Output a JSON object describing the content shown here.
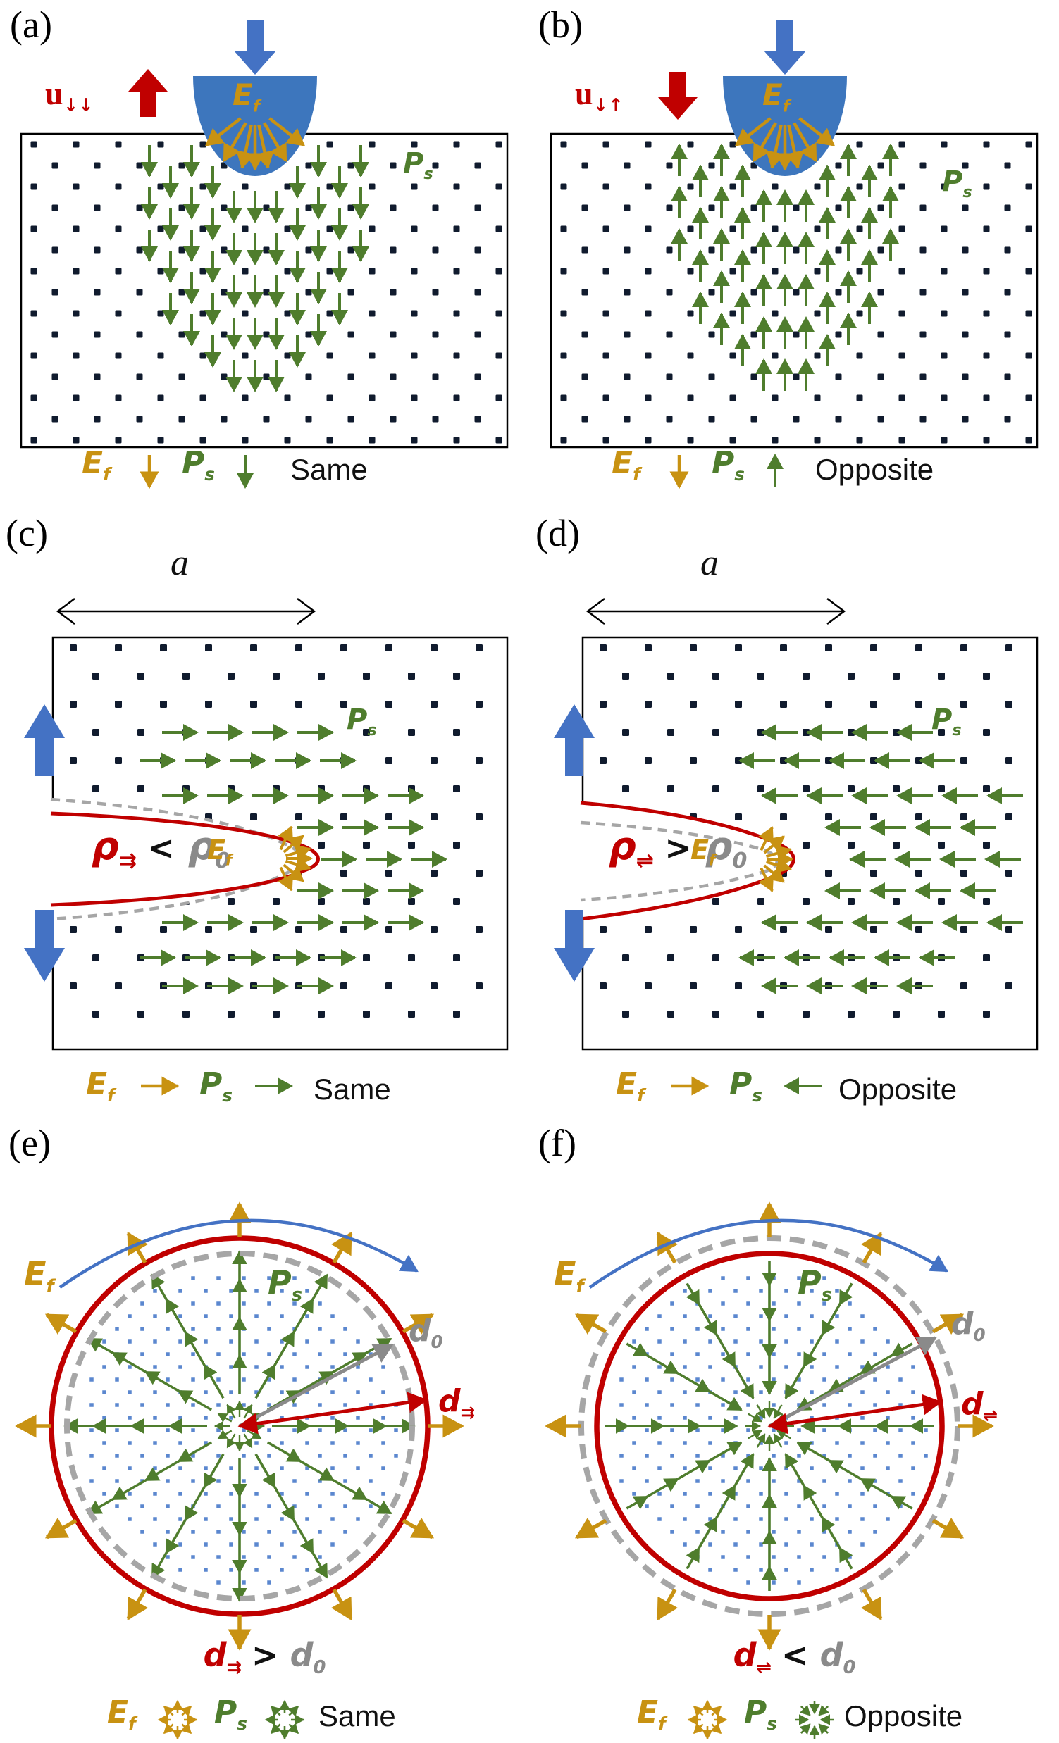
{
  "colors": {
    "accent_blue": "#4472C4",
    "indenter_blue": "#3D76BD",
    "red": "#C00000",
    "gold": "#C89212",
    "green": "#4F7D2D",
    "gray_dashed": "#A6A6A6",
    "gray_label": "#8A8A8A",
    "lattice_dot": "#101B2E",
    "fine_dot": "#5B87CF",
    "text": "#111111"
  },
  "symbols": {
    "field_base": "E",
    "field_sub": "f",
    "polarization_base": "P",
    "polarization_sub": "s",
    "displacement_base": "u",
    "rho_base": "ρ",
    "zero_sub": "0",
    "d_base": "d",
    "crack_length_label": "a"
  },
  "panels": {
    "a": {
      "tag": "(a)",
      "u_sub": "↓↓",
      "p_arrows": "down",
      "relation": "Same"
    },
    "b": {
      "tag": "(b)",
      "u_sub": "↓↑",
      "p_arrows": "up",
      "relation": "Opposite"
    },
    "c": {
      "tag": "(c)",
      "rho_sub": "⇉",
      "comparator": "<",
      "p_arrows": "right",
      "relation": "Same"
    },
    "d": {
      "tag": "(d)",
      "rho_sub": "⇌",
      "comparator": ">",
      "p_arrows": "left",
      "relation": "Opposite"
    },
    "e": {
      "tag": "(e)",
      "d_sub": "⇉",
      "comparator": ">",
      "p_arrows": "outward",
      "relation": "Same"
    },
    "f": {
      "tag": "(f)",
      "d_sub": "⇌",
      "comparator": "<",
      "p_arrows": "inward",
      "relation": "Opposite"
    }
  }
}
